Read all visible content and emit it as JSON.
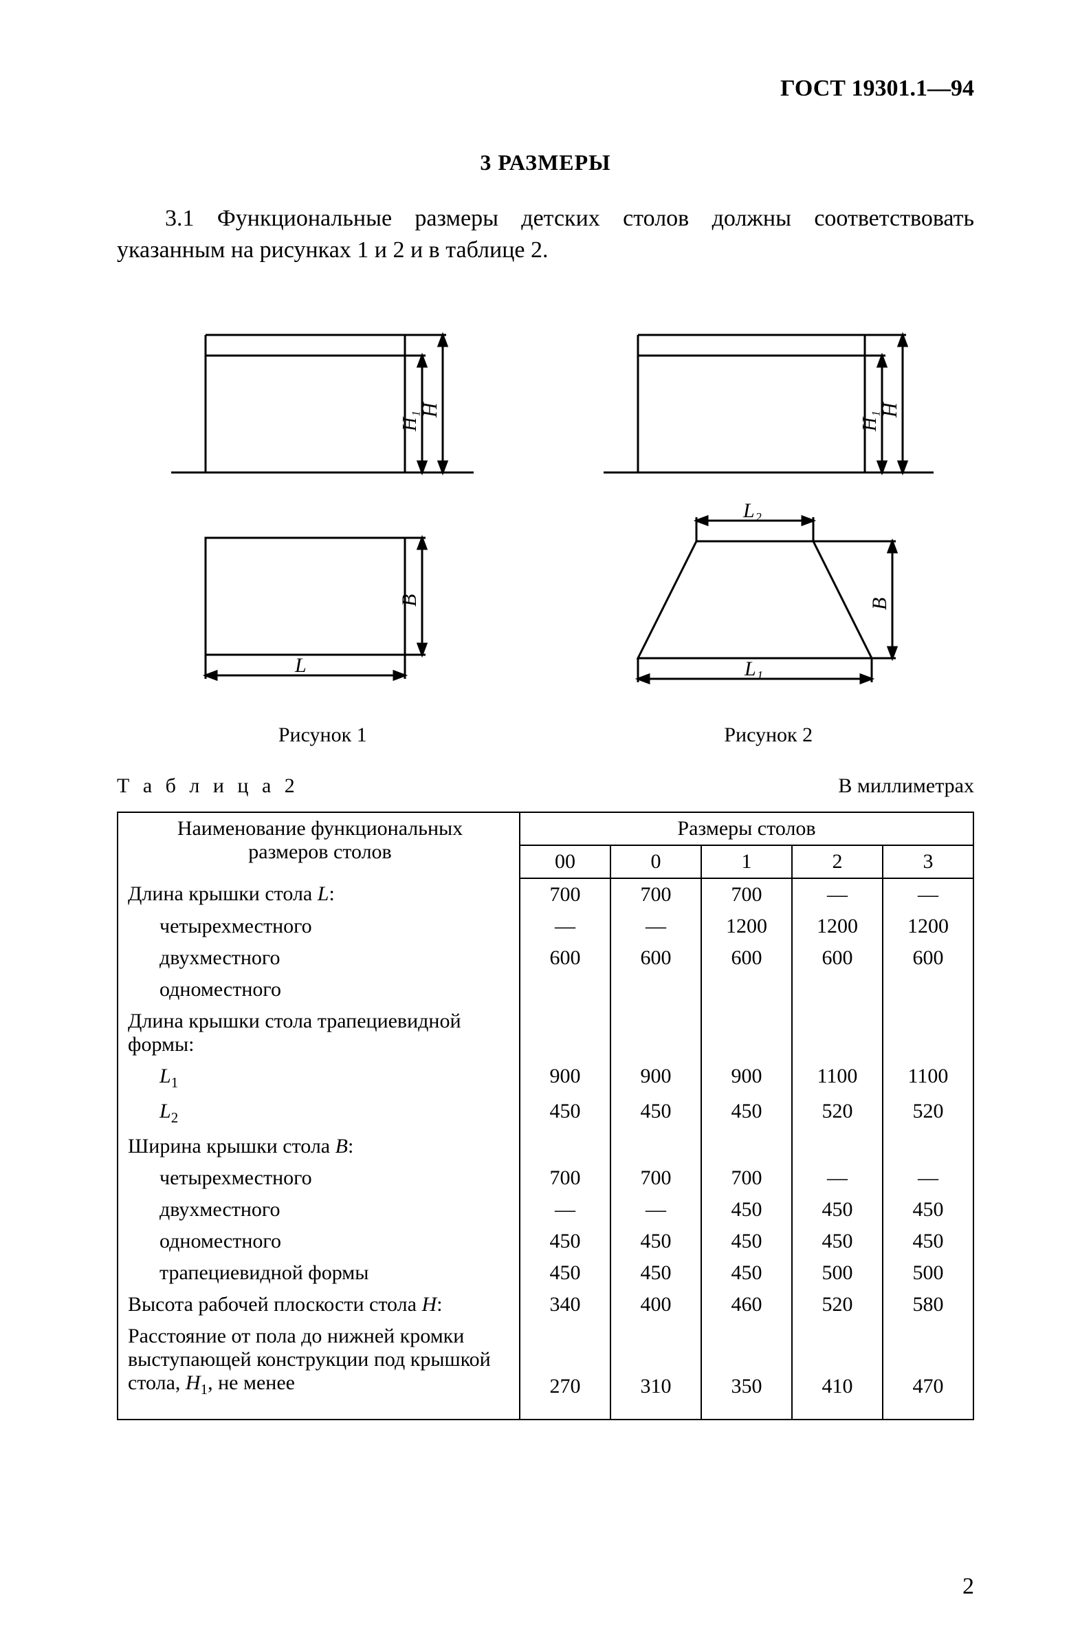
{
  "header": {
    "standard": "ГОСТ 19301.1—94"
  },
  "section": {
    "num_title": "3  РАЗМЕРЫ",
    "para": "3.1 Функциональные размеры детских столов должны соответствовать указанным на рисунках 1 и 2 и в таблице 2."
  },
  "figures": {
    "fig1_caption": "Рисунок 1",
    "fig2_caption": "Рисунок 2",
    "labels": {
      "H": "H",
      "H1": "H₁",
      "B": "B",
      "L": "L",
      "L1": "L₁",
      "L2": "L₂"
    },
    "style": {
      "stroke": "#000000",
      "stroke_width": 3,
      "fill": "none",
      "font_size_label": 30
    }
  },
  "table": {
    "caption_left": "Т а б л и ц а    2",
    "caption_right": "В миллиметрах",
    "header": {
      "col1_line1": "Наименование функциональных",
      "col1_line2": "размеров столов",
      "group": "Размеры столов",
      "cols": [
        "00",
        "0",
        "1",
        "2",
        "3"
      ]
    },
    "rows": [
      {
        "label": "Длина крышки стола L:",
        "indent": 0,
        "vals": [
          "700",
          "700",
          "700",
          "—",
          "—"
        ],
        "italicL": true
      },
      {
        "label": "четырехместного",
        "indent": 1,
        "vals": [
          "—",
          "—",
          "1200",
          "1200",
          "1200"
        ]
      },
      {
        "label": "двухместного",
        "indent": 1,
        "vals": [
          "600",
          "600",
          "600",
          "600",
          "600"
        ]
      },
      {
        "label": "одноместного",
        "indent": 1,
        "vals": [
          "",
          "",
          "",
          "",
          ""
        ]
      },
      {
        "label": "Длина крышки стола трапециевидной формы:",
        "indent": 0,
        "vals": [
          "",
          "",
          "",
          "",
          ""
        ]
      },
      {
        "label": "L₁",
        "indent": 1,
        "vals": [
          "900",
          "900",
          "900",
          "1100",
          "1100"
        ],
        "italicL": true
      },
      {
        "label": "L₂",
        "indent": 1,
        "vals": [
          "450",
          "450",
          "450",
          "520",
          "520"
        ],
        "italicL": true
      },
      {
        "label": "Ширина крышки стола B:",
        "indent": 0,
        "vals": [
          "",
          "",
          "",
          "",
          ""
        ],
        "italicL": true
      },
      {
        "label": "четырехместного",
        "indent": 1,
        "vals": [
          "700",
          "700",
          "700",
          "—",
          "—"
        ]
      },
      {
        "label": "двухместного",
        "indent": 1,
        "vals": [
          "—",
          "—",
          "450",
          "450",
          "450"
        ]
      },
      {
        "label": "одноместного",
        "indent": 1,
        "vals": [
          "450",
          "450",
          "450",
          "450",
          "450"
        ]
      },
      {
        "label": "трапециевидной формы",
        "indent": 1,
        "vals": [
          "450",
          "450",
          "450",
          "500",
          "500"
        ]
      },
      {
        "label": "Высота рабочей плоскости стола H:",
        "indent": 0,
        "vals": [
          "340",
          "400",
          "460",
          "520",
          "580"
        ],
        "italicL": true
      },
      {
        "label": "Расстояние от пола до нижней кромки выступающей конструкции под крышкой стола, H₁, не менее",
        "indent": 0,
        "vals": [
          "270",
          "310",
          "350",
          "410",
          "470"
        ],
        "italicL": true,
        "extraPad": true
      }
    ]
  },
  "pagenum": "2"
}
